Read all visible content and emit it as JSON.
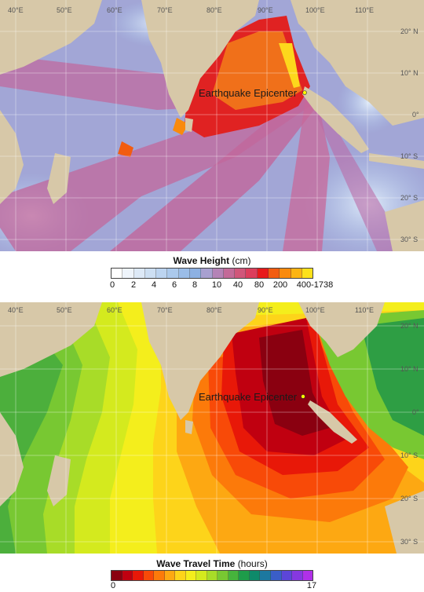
{
  "wave_height_map": {
    "longitude_labels": [
      "40°E",
      "50°E",
      "60°E",
      "70°E",
      "80°E",
      "90°E",
      "100°E",
      "110°E"
    ],
    "latitude_labels": [
      "20° N",
      "10° N",
      "0°",
      "10° S",
      "20° S",
      "30° S"
    ],
    "epicenter_label": "Earthquake Epicenter"
  },
  "wave_height_legend": {
    "title": "Wave Height",
    "unit": "(cm)",
    "colors": [
      "#ffffff",
      "#eef4fb",
      "#dde9f7",
      "#cddff3",
      "#bcd4f0",
      "#abc9ec",
      "#9bbde8",
      "#8db1e3",
      "#a8a0d0",
      "#b483b6",
      "#c36a98",
      "#d0567a",
      "#dc3e5c",
      "#e81a1a",
      "#f25c10",
      "#f98a0c",
      "#fcb412",
      "#fde11a"
    ],
    "tick_labels": [
      "0",
      "2",
      "4",
      "6",
      "8",
      "10",
      "40",
      "80",
      "200",
      "400-1738"
    ]
  },
  "travel_time_map": {
    "longitude_labels": [
      "40°E",
      "50°E",
      "60°E",
      "70°E",
      "80°E",
      "90°E",
      "100°E",
      "110°E"
    ],
    "latitude_labels": [
      "20° N",
      "10° N",
      "0°",
      "10° S",
      "20° S",
      "30° S"
    ],
    "epicenter_label": "Earthquake Epicenter"
  },
  "travel_time_legend": {
    "title": "Wave Travel Time",
    "unit": "(hours)",
    "colors": [
      "#8a0010",
      "#c00010",
      "#e81808",
      "#f84a08",
      "#fc7a0a",
      "#fda812",
      "#fdd41a",
      "#f4ee1c",
      "#d4ea1e",
      "#a8dc28",
      "#78c832",
      "#46b43c",
      "#1e9c4a",
      "#0e8a6a",
      "#1c78a0",
      "#3a5ec8",
      "#5c46d8",
      "#8638e0",
      "#b030e8"
    ],
    "min_label": "0",
    "max_label": "17"
  }
}
